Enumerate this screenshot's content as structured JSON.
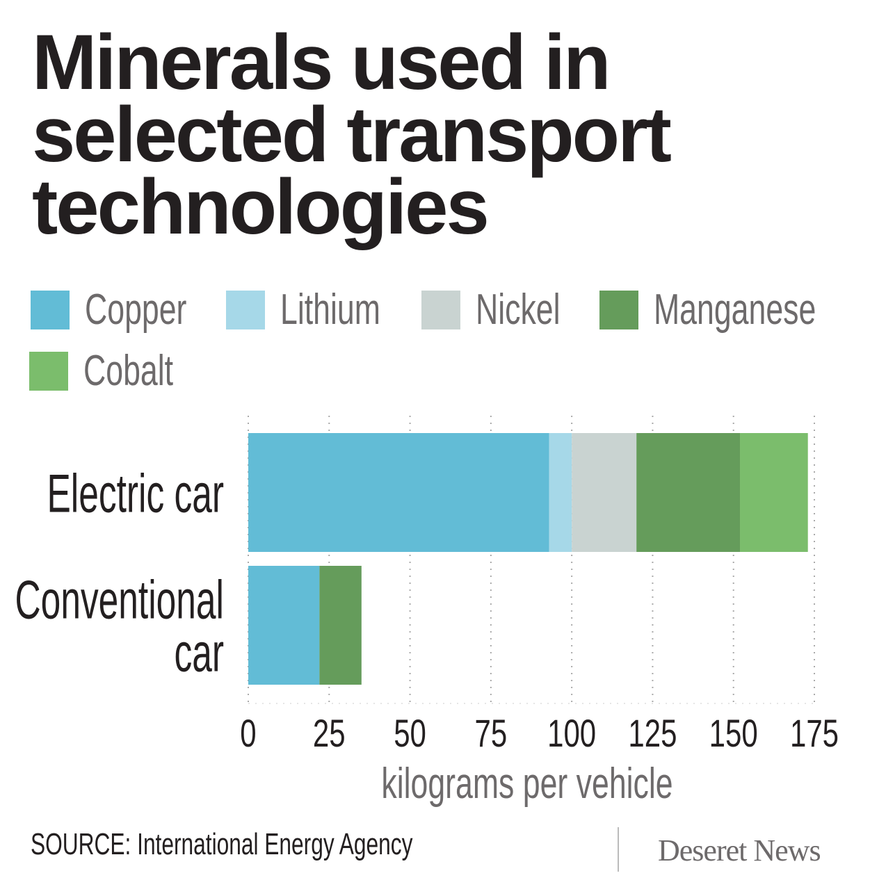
{
  "chart_data": {
    "type": "bar",
    "orientation": "horizontal",
    "stacked": true,
    "title": "Minerals used in selected transport technologies",
    "categories": [
      "Electric car",
      "Conventional car"
    ],
    "series": [
      {
        "name": "Copper",
        "color": "#62bcd6",
        "values": [
          93,
          22
        ]
      },
      {
        "name": "Lithium",
        "color": "#a6d8e8",
        "values": [
          7,
          0
        ]
      },
      {
        "name": "Nickel",
        "color": "#c9d3d1",
        "values": [
          20,
          0
        ]
      },
      {
        "name": "Manganese",
        "color": "#659c5b",
        "values": [
          32,
          13
        ]
      },
      {
        "name": "Cobalt",
        "color": "#7bbd6c",
        "values": [
          21,
          0
        ]
      }
    ],
    "xlabel": "kilograms per vehicle",
    "xlim": [
      0,
      175
    ],
    "xticks": [
      0,
      25,
      50,
      75,
      100,
      125,
      150,
      175
    ],
    "grid": "vertical dotted",
    "legend": "top"
  },
  "title_lines": [
    "Minerals used in",
    "selected transport",
    "technologies"
  ],
  "category_labels": [
    [
      "Electric car"
    ],
    [
      "Conventional",
      "car"
    ]
  ],
  "source": "SOURCE: International Energy Agency",
  "logo": "Deseret News"
}
